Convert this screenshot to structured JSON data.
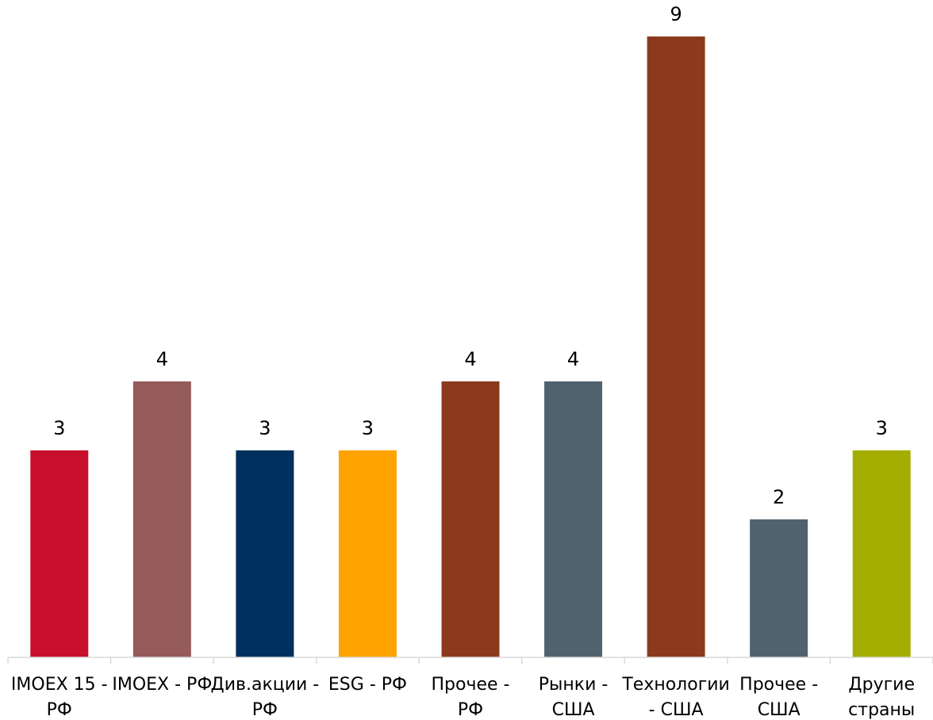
{
  "chart_data": {
    "type": "bar",
    "title": "",
    "xlabel": "",
    "ylabel": "",
    "ylim": [
      0,
      9
    ],
    "grid": false,
    "legend": "none",
    "categories": [
      [
        "IMOEX 15 -",
        "РФ"
      ],
      [
        "IMOEX - РФ"
      ],
      [
        "Див.акции -",
        "РФ"
      ],
      [
        "ESG - РФ"
      ],
      [
        "Прочее -",
        "РФ"
      ],
      [
        "Рынки -",
        "США"
      ],
      [
        "Технологии",
        "- США"
      ],
      [
        "Прочее -",
        "США"
      ],
      [
        "Другие",
        "страны"
      ]
    ],
    "values": [
      3,
      4,
      3,
      3,
      4,
      4,
      9,
      2,
      3
    ],
    "colors": [
      "#C8102E",
      "#955A5A",
      "#00305D",
      "#FFA300",
      "#8B3A1E",
      "#51626F",
      "#8B3A1E",
      "#51626F",
      "#A4AE00"
    ]
  }
}
